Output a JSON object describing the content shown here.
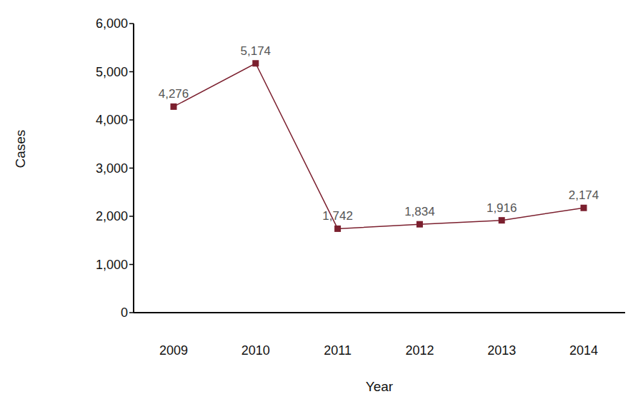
{
  "chart_data": {
    "type": "line",
    "x_label": "Year",
    "y_label": "Cases",
    "categories": [
      "2009",
      "2010",
      "2011",
      "2012",
      "2013",
      "2014"
    ],
    "values": [
      4276,
      5174,
      1742,
      1834,
      1916,
      2174
    ],
    "value_labels": [
      "4,276",
      "5,174",
      "1,742",
      "1,834",
      "1,916",
      "2,174"
    ],
    "color": "#7b1f2e",
    "ylim": [
      0,
      6000
    ],
    "yticks": [
      0,
      {
        "value": 1000,
        "label": "1,000"
      },
      {
        "value": 2000,
        "label": "2,000"
      },
      {
        "value": 3000,
        "label": "3,000"
      },
      {
        "value": 4000,
        "label": "4,000"
      },
      {
        "value": 5000,
        "label": "5,000"
      },
      {
        "value": 6000,
        "label": "6,000"
      }
    ],
    "data_labels": true,
    "marker": "square",
    "grid": false
  }
}
